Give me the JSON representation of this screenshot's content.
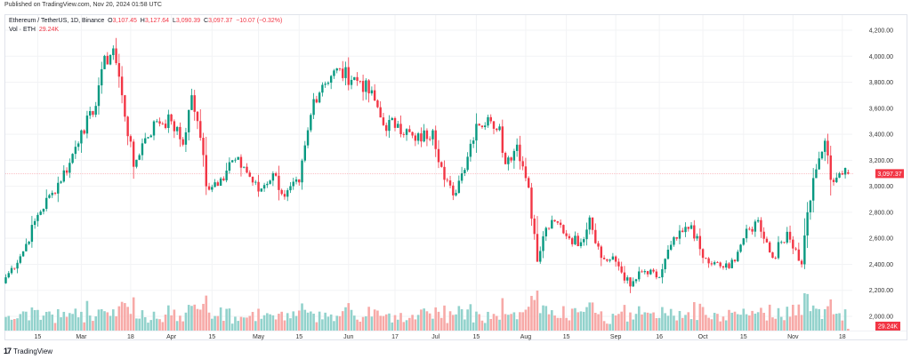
{
  "published": "Published on TradingView.com, Nov 20, 2024 01:58 UTC",
  "legend": {
    "symbol": "Ethereum / TetherUS, 1D, Binance",
    "o_label": "O",
    "o": "3,107.45",
    "h_label": "H",
    "h": "3,127.64",
    "l_label": "L",
    "l": "3,090.39",
    "c_label": "C",
    "c": "3,097.37",
    "change": "−10.07 (−0.32%)",
    "vol_label": "Vol · ETH",
    "vol": "29.24K"
  },
  "price_badge": "3,097.37",
  "vol_badge": "29.24K",
  "footer": {
    "logo": "17",
    "brand": "TradingView"
  },
  "colors": {
    "up": "#089981",
    "down": "#f23645",
    "up_vol": "#92d2cc",
    "down_vol": "#f7a9a7"
  },
  "chart_data": {
    "type": "candlestick",
    "start_date": "2024-02-04",
    "end_date": "2024-11-20",
    "ylim": [
      1940,
      4260
    ],
    "y_ticks": [
      "4,200.00",
      "4,000.00",
      "3,800.00",
      "3,600.00",
      "3,400.00",
      "3,200.00",
      "3,000.00",
      "2,800.00",
      "2,600.00",
      "2,400.00",
      "2,200.00",
      "2,000.00"
    ],
    "y_tick_values": [
      4200,
      4000,
      3800,
      3600,
      3400,
      3200,
      3000,
      2800,
      2600,
      2400,
      2200,
      2000
    ],
    "x_ticks": [
      {
        "label": "15",
        "date": "2024-02-15"
      },
      {
        "label": "Mar",
        "date": "2024-03-01"
      },
      {
        "label": "18",
        "date": "2024-03-18"
      },
      {
        "label": "Apr",
        "date": "2024-04-01"
      },
      {
        "label": "15",
        "date": "2024-04-15"
      },
      {
        "label": "May",
        "date": "2024-05-01"
      },
      {
        "label": "15",
        "date": "2024-05-15"
      },
      {
        "label": "Jun",
        "date": "2024-06-01"
      },
      {
        "label": "17",
        "date": "2024-06-17"
      },
      {
        "label": "Jul",
        "date": "2024-07-01"
      },
      {
        "label": "15",
        "date": "2024-07-15"
      },
      {
        "label": "Aug",
        "date": "2024-08-01"
      },
      {
        "label": "15",
        "date": "2024-08-15"
      },
      {
        "label": "Sep",
        "date": "2024-09-01"
      },
      {
        "label": "16",
        "date": "2024-09-16"
      },
      {
        "label": "Oct",
        "date": "2024-10-01"
      },
      {
        "label": "15",
        "date": "2024-10-15"
      },
      {
        "label": "Nov",
        "date": "2024-11-01"
      },
      {
        "label": "18",
        "date": "2024-11-18"
      }
    ],
    "close_anchors": [
      [
        "2024-02-04",
        2300
      ],
      [
        "2024-02-10",
        2500
      ],
      [
        "2024-02-15",
        2780
      ],
      [
        "2024-02-20",
        2950
      ],
      [
        "2024-02-26",
        3180
      ],
      [
        "2024-03-01",
        3430
      ],
      [
        "2024-03-05",
        3550
      ],
      [
        "2024-03-08",
        3900
      ],
      [
        "2024-03-12",
        4060
      ],
      [
        "2024-03-15",
        3700
      ],
      [
        "2024-03-19",
        3150
      ],
      [
        "2024-03-22",
        3330
      ],
      [
        "2024-03-27",
        3500
      ],
      [
        "2024-04-01",
        3500
      ],
      [
        "2024-04-05",
        3320
      ],
      [
        "2024-04-08",
        3700
      ],
      [
        "2024-04-12",
        3240
      ],
      [
        "2024-04-13",
        3000
      ],
      [
        "2024-04-18",
        3060
      ],
      [
        "2024-04-22",
        3200
      ],
      [
        "2024-04-26",
        3150
      ],
      [
        "2024-05-01",
        2960
      ],
      [
        "2024-05-06",
        3100
      ],
      [
        "2024-05-10",
        2920
      ],
      [
        "2024-05-15",
        3030
      ],
      [
        "2024-05-20",
        3670
      ],
      [
        "2024-05-23",
        3780
      ],
      [
        "2024-05-27",
        3890
      ],
      [
        "2024-06-05",
        3810
      ],
      [
        "2024-06-10",
        3660
      ],
      [
        "2024-06-13",
        3470
      ],
      [
        "2024-06-18",
        3480
      ],
      [
        "2024-06-24",
        3350
      ],
      [
        "2024-06-30",
        3430
      ],
      [
        "2024-07-04",
        3050
      ],
      [
        "2024-07-07",
        2930
      ],
      [
        "2024-07-10",
        3100
      ],
      [
        "2024-07-15",
        3480
      ],
      [
        "2024-07-20",
        3500
      ],
      [
        "2024-07-23",
        3460
      ],
      [
        "2024-07-25",
        3170
      ],
      [
        "2024-07-29",
        3320
      ],
      [
        "2024-08-02",
        2990
      ],
      [
        "2024-08-05",
        2420
      ],
      [
        "2024-08-08",
        2680
      ],
      [
        "2024-08-12",
        2720
      ],
      [
        "2024-08-16",
        2600
      ],
      [
        "2024-08-20",
        2570
      ],
      [
        "2024-08-23",
        2760
      ],
      [
        "2024-08-27",
        2450
      ],
      [
        "2024-09-01",
        2420
      ],
      [
        "2024-09-06",
        2230
      ],
      [
        "2024-09-10",
        2340
      ],
      [
        "2024-09-16",
        2300
      ],
      [
        "2024-09-20",
        2550
      ],
      [
        "2024-09-27",
        2700
      ],
      [
        "2024-10-01",
        2450
      ],
      [
        "2024-10-04",
        2400
      ],
      [
        "2024-10-10",
        2370
      ],
      [
        "2024-10-15",
        2600
      ],
      [
        "2024-10-20",
        2740
      ],
      [
        "2024-10-25",
        2450
      ],
      [
        "2024-10-30",
        2650
      ],
      [
        "2024-11-04",
        2400
      ],
      [
        "2024-11-06",
        2800
      ],
      [
        "2024-11-09",
        3130
      ],
      [
        "2024-11-12",
        3350
      ],
      [
        "2024-11-14",
        3050
      ],
      [
        "2024-11-17",
        3100
      ],
      [
        "2024-11-20",
        3097.37
      ]
    ],
    "last": {
      "open": 3107.45,
      "high": 3127.64,
      "low": 3090.39,
      "close": 3097.37,
      "volume_k": 29.24
    }
  }
}
